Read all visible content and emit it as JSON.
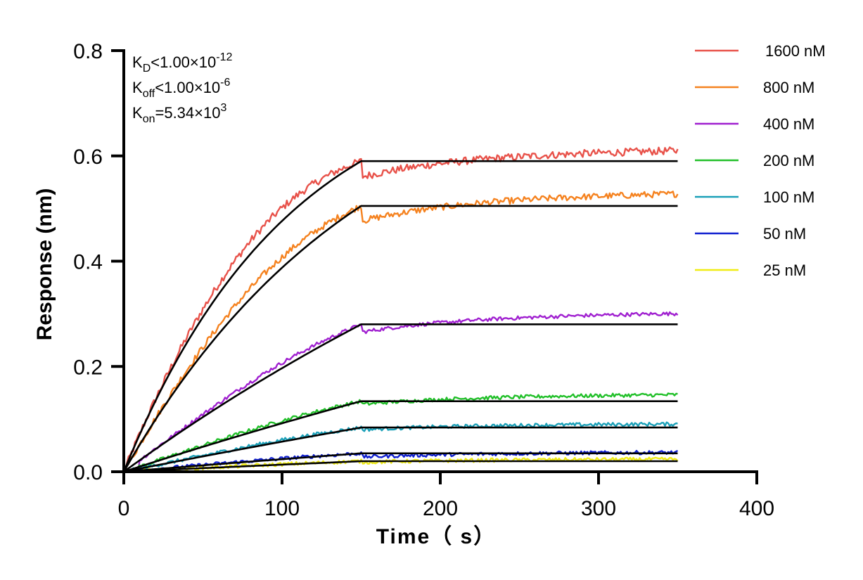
{
  "chart_data": {
    "type": "line",
    "xlabel": "Time（ s）",
    "ylabel": "Response (nm)",
    "xlim": [
      0,
      400
    ],
    "ylim": [
      0,
      0.8
    ],
    "x_ticks": [
      "0",
      "100",
      "200",
      "300",
      "400"
    ],
    "y_ticks": [
      "0.0",
      "0.2",
      "0.4",
      "0.6",
      "0.8"
    ],
    "grid": false,
    "legend_position": "top-right",
    "annotations": {
      "kd": {
        "base": "K",
        "sub": "D",
        "text": "<1.00×10",
        "sup": "-12"
      },
      "koff": {
        "base": "K",
        "sub": "off",
        "text": "<1.00×10",
        "sup": "-6"
      },
      "kon": {
        "base": "K",
        "sub": "on",
        "text": "=5.34×10",
        "sup": "3"
      }
    },
    "association_end": 150,
    "end_time": 350,
    "fit_color": "#000000",
    "series": [
      {
        "name": "1600 nM",
        "color": "#e8524a",
        "plateau": 0.59,
        "rate": 0.0095,
        "final": 0.612,
        "dip": 0.56
      },
      {
        "name": "800 nM",
        "color": "#f5821f",
        "plateau": 0.505,
        "rate": 0.0065,
        "final": 0.53,
        "dip": 0.476
      },
      {
        "name": "400 nM",
        "color": "#a020d0",
        "plateau": 0.28,
        "rate": 0.0022,
        "final": 0.302,
        "dip": 0.265
      },
      {
        "name": "200 nM",
        "color": "#22c02a",
        "plateau": 0.134,
        "rate": 0.0012,
        "final": 0.147,
        "dip": 0.128
      },
      {
        "name": "100 nM",
        "color": "#1aa0b8",
        "plateau": 0.084,
        "rate": 0.0008,
        "final": 0.091,
        "dip": 0.08
      },
      {
        "name": "50 nM",
        "color": "#1020d0",
        "plateau": 0.035,
        "rate": 0.0008,
        "final": 0.037,
        "dip": 0.028
      },
      {
        "name": "25 nM",
        "color": "#f0ec14",
        "plateau": 0.02,
        "rate": 0.0004,
        "final": 0.024,
        "dip": 0.018
      }
    ]
  }
}
